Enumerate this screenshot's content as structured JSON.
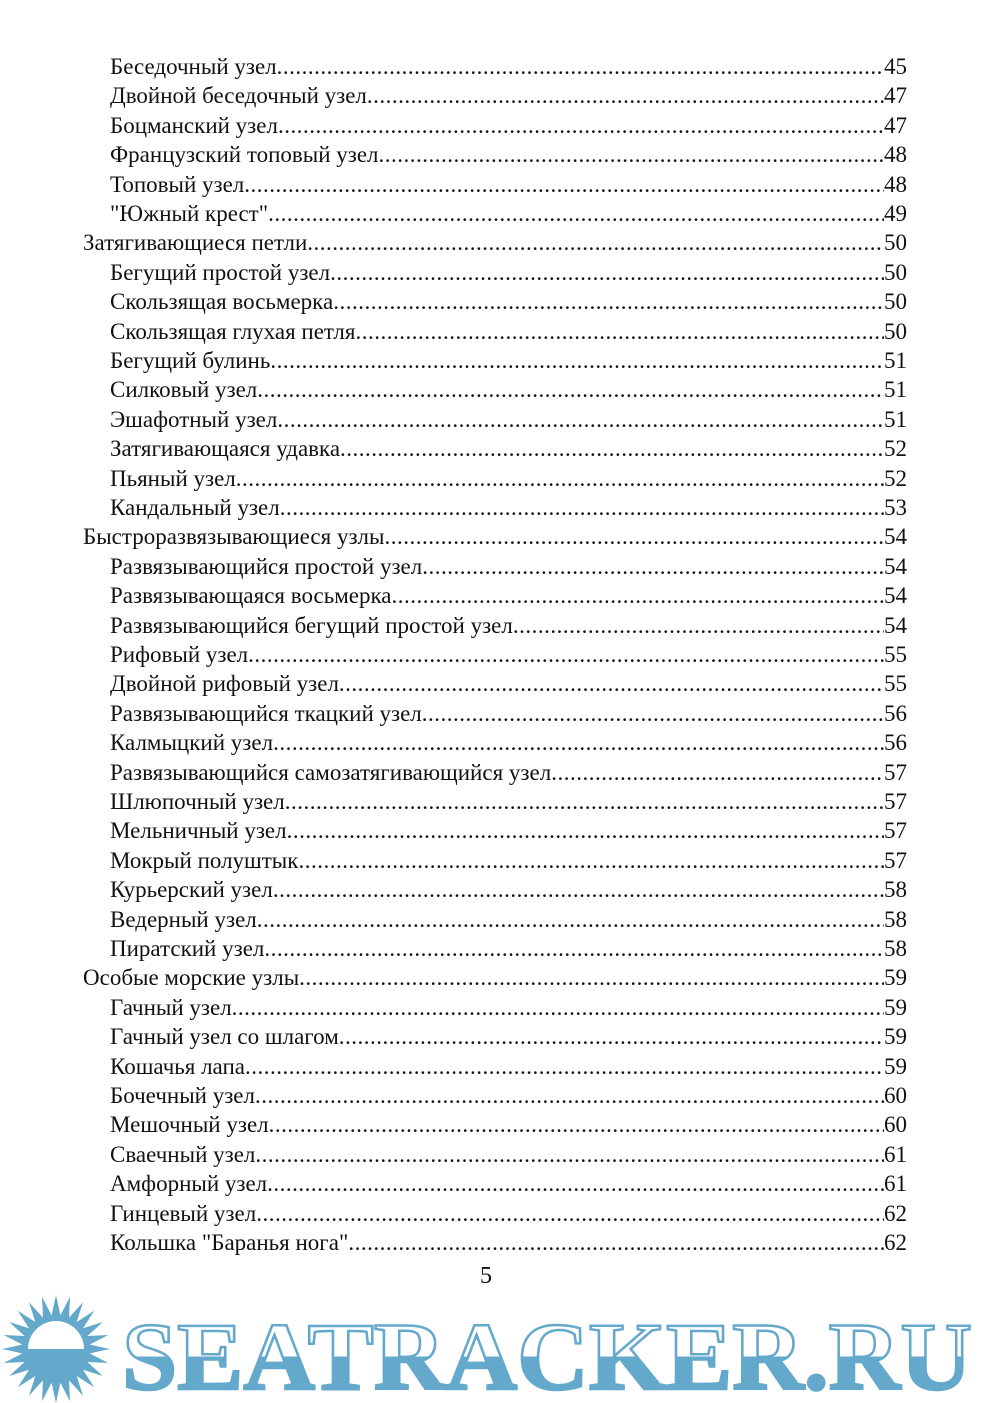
{
  "toc": [
    {
      "title": "Беседочный узел",
      "page": "45",
      "level": 1
    },
    {
      "title": "Двойной беседочный узел",
      "page": "47",
      "level": 1
    },
    {
      "title": "Боцманский узел",
      "page": "47",
      "level": 1
    },
    {
      "title": "Французский топовый узел",
      "page": "48",
      "level": 1
    },
    {
      "title": "Топовый узел",
      "page": "48",
      "level": 1
    },
    {
      "title": "\"Южный крест\"",
      "page": "49",
      "level": 1
    },
    {
      "title": "Затягивающиеся петли",
      "page": "50",
      "level": 0
    },
    {
      "title": "Бегущий простой узел",
      "page": "50",
      "level": 1
    },
    {
      "title": "Скользящая восьмерка",
      "page": "50",
      "level": 1
    },
    {
      "title": "Скользящая глухая петля",
      "page": "50",
      "level": 1
    },
    {
      "title": "Бегущий булинь",
      "page": "51",
      "level": 1
    },
    {
      "title": "Силковый узел",
      "page": "51",
      "level": 1
    },
    {
      "title": "Эшафотный узел",
      "page": "51",
      "level": 1
    },
    {
      "title": "Затягивающаяся удавка",
      "page": "52",
      "level": 1
    },
    {
      "title": "Пьяный узел",
      "page": "52",
      "level": 1
    },
    {
      "title": "Кандальный узел",
      "page": "53",
      "level": 1
    },
    {
      "title": "Быстроразвязывающиеся узлы",
      "page": "54",
      "level": 0
    },
    {
      "title": "Развязывающийся простой узел",
      "page": "54",
      "level": 1
    },
    {
      "title": "Развязывающаяся восьмерка",
      "page": "54",
      "level": 1
    },
    {
      "title": "Развязывающийся бегущий простой узел",
      "page": "54",
      "level": 1
    },
    {
      "title": "Рифовый узел",
      "page": "55",
      "level": 1
    },
    {
      "title": "Двойной рифовый узел",
      "page": "55",
      "level": 1
    },
    {
      "title": "Развязывающийся ткацкий узел",
      "page": "56",
      "level": 1
    },
    {
      "title": "Калмыцкий узел",
      "page": "56",
      "level": 1
    },
    {
      "title": "Развязывающийся самозатягивающийся узел",
      "page": "57",
      "level": 1
    },
    {
      "title": "Шлюпочный узел",
      "page": "57",
      "level": 1
    },
    {
      "title": "Мельничный узел",
      "page": "57",
      "level": 1
    },
    {
      "title": "Мокрый полуштык",
      "page": "57",
      "level": 1
    },
    {
      "title": "Курьерский узел",
      "page": "58",
      "level": 1
    },
    {
      "title": "Ведерный узел",
      "page": "58",
      "level": 1
    },
    {
      "title": "Пиратский узел",
      "page": "58",
      "level": 1
    },
    {
      "title": "Особые морские узлы",
      "page": "59",
      "level": 0
    },
    {
      "title": "Гачный узел",
      "page": "59",
      "level": 1
    },
    {
      "title": "Гачный узел со шлагом",
      "page": "59",
      "level": 1
    },
    {
      "title": "Кошачья лапа",
      "page": "59",
      "level": 1
    },
    {
      "title": "Бочечный узел",
      "page": "60",
      "level": 1
    },
    {
      "title": "Мешочный узел",
      "page": "60",
      "level": 1
    },
    {
      "title": "Сваечный узел",
      "page": "61",
      "level": 1
    },
    {
      "title": "Амфорный узел",
      "page": "61",
      "level": 1
    },
    {
      "title": "Гинцевый узел",
      "page": "62",
      "level": 1
    },
    {
      "title": "Кольшка \"Баранья нога\"",
      "page": "62",
      "level": 1
    }
  ],
  "page_number": "5",
  "watermark": {
    "text": "SEATRACKER.RU",
    "color": "#64a9cc"
  }
}
